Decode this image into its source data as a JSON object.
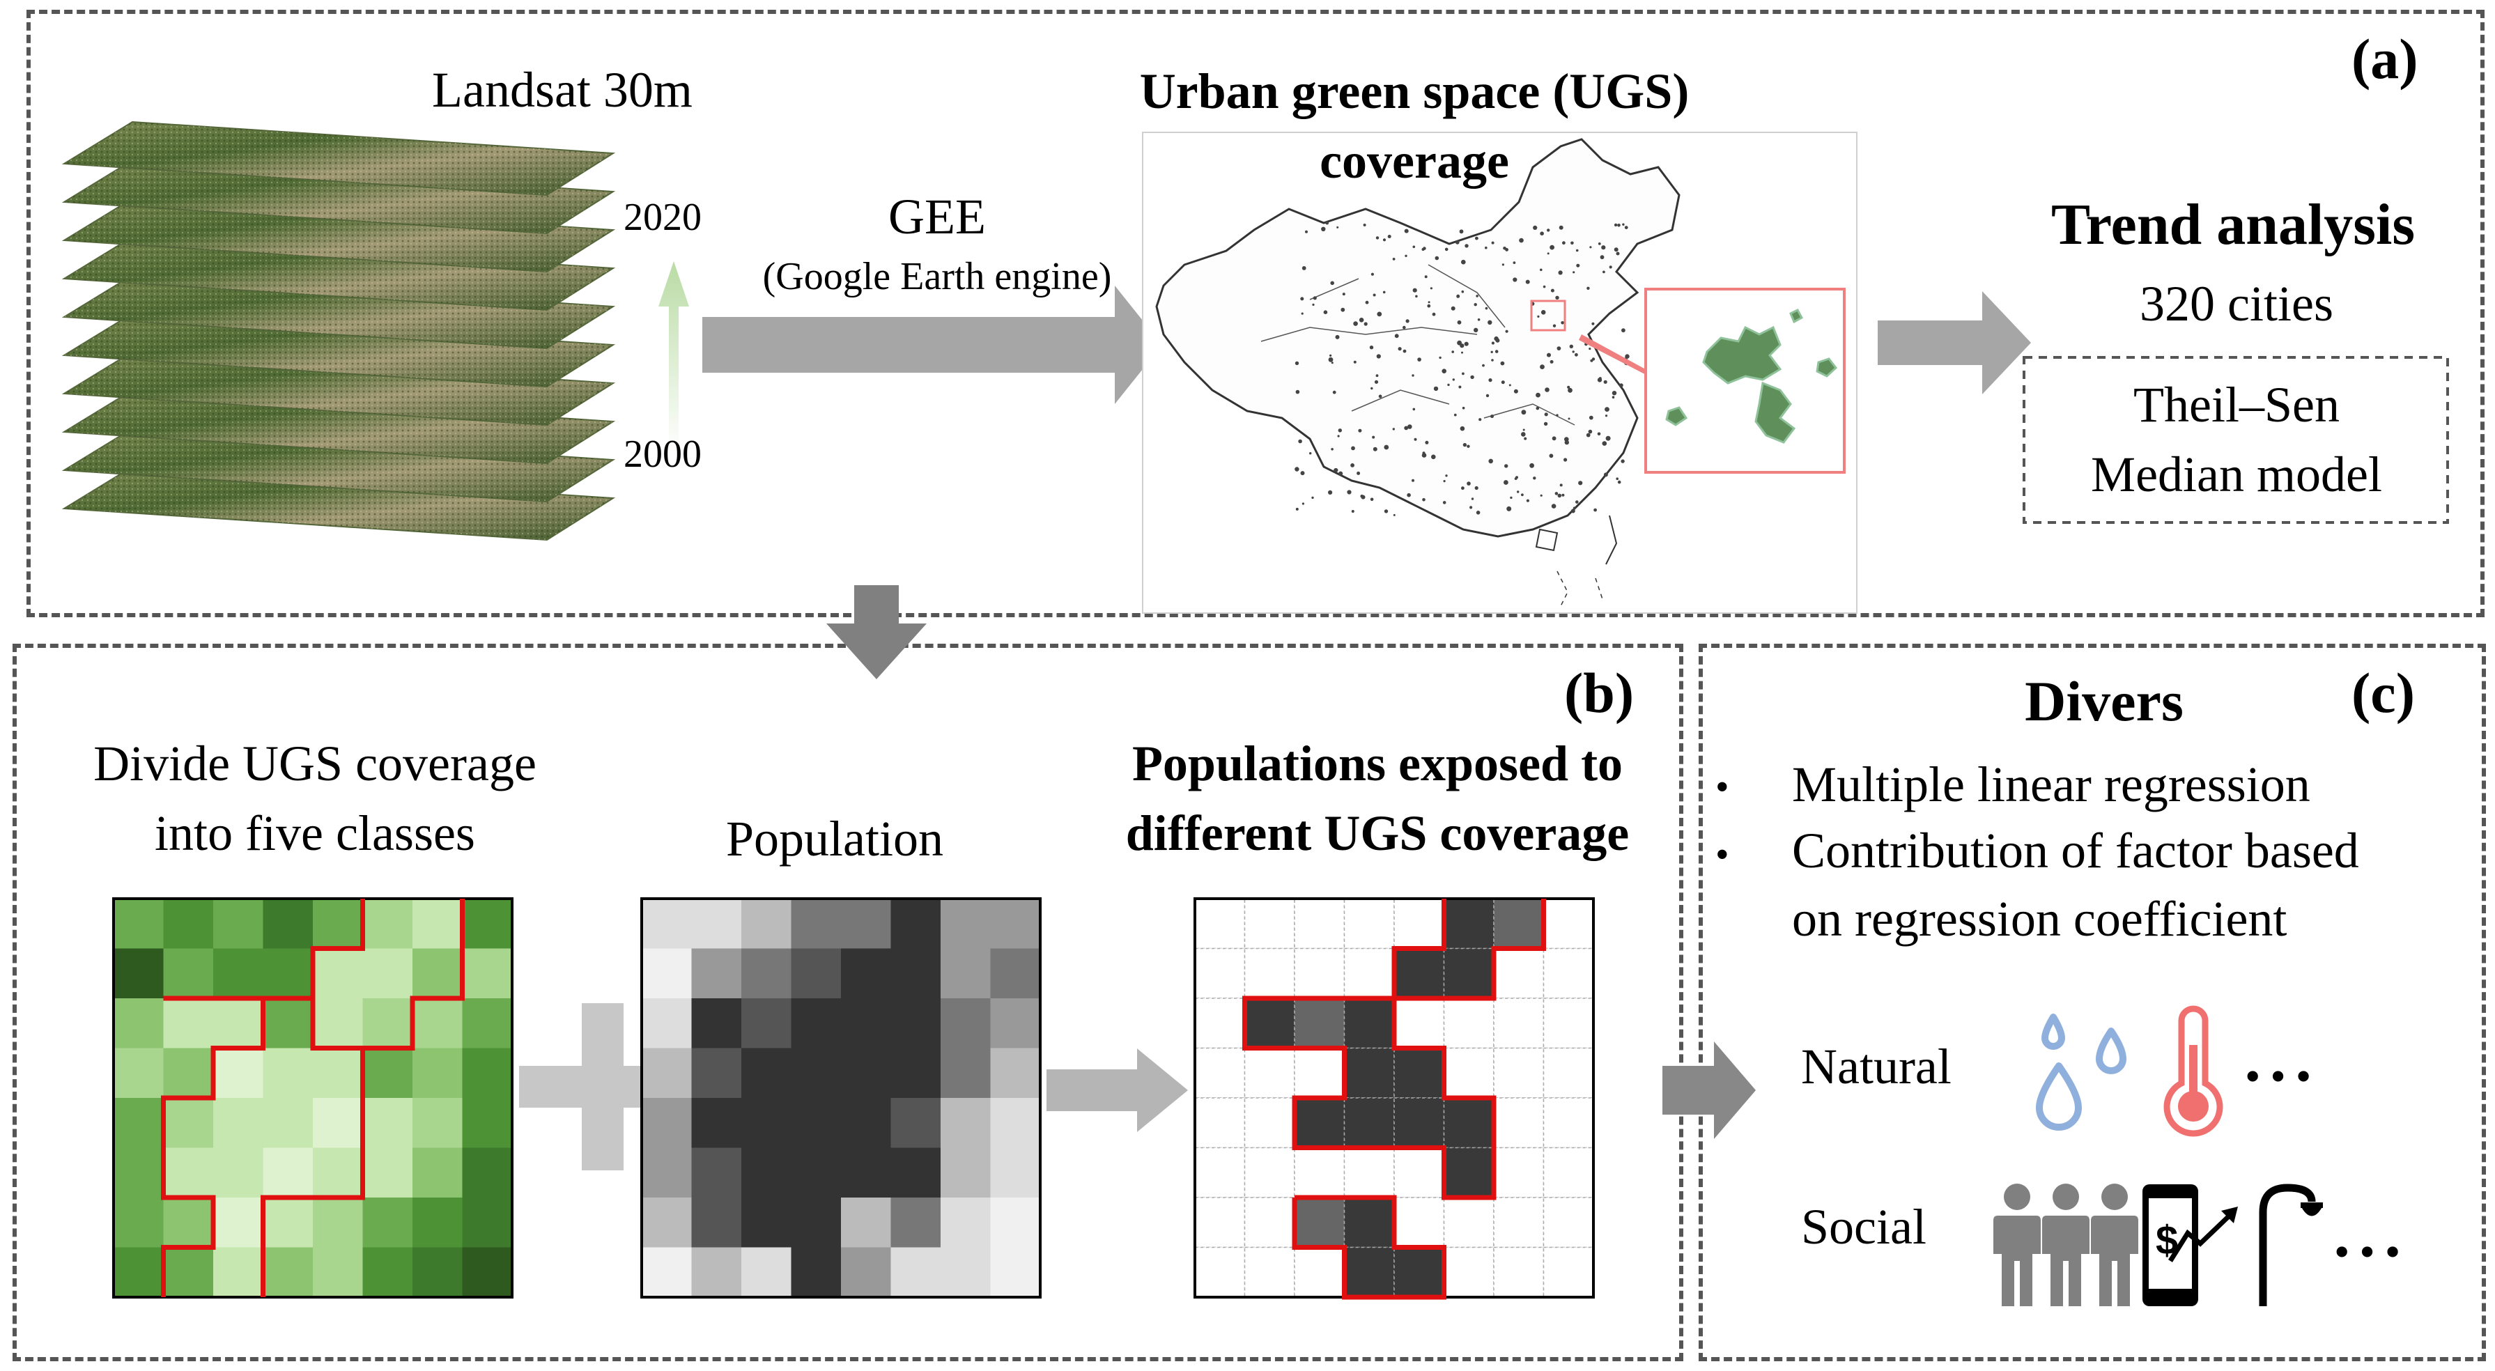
{
  "panel_a": {
    "label": "(a)",
    "landsat_label": "Landsat 30m",
    "year_top": "2020",
    "year_bottom": "2000",
    "gee_label": "GEE",
    "gee_sub": "(Google Earth engine)",
    "ugs_title_line1": "Urban green space (UGS)",
    "ugs_title_line2": "coverage",
    "trend_title": "Trend analysis",
    "cities": "320 cities",
    "model_line1": "Theil–Sen",
    "model_line2": "Median model"
  },
  "panel_b": {
    "label": "(b)",
    "divide_line1": "Divide UGS coverage",
    "divide_line2": "into five classes",
    "population_label": "Population",
    "exposed_line1": "Populations exposed to",
    "exposed_line2": "different UGS coverage"
  },
  "panel_c": {
    "label": "(c)",
    "title": "Divers",
    "bullet1": "Multiple linear regression",
    "bullet2_line1": "Contribution of factor based",
    "bullet2_line2": "on regression coefficient",
    "natural_label": "Natural",
    "social_label": "Social",
    "ellipsis": "•••"
  },
  "icons": [
    "landsat-stack-icon",
    "china-map-icon",
    "water-drops-icon",
    "thermometer-icon",
    "people-icon",
    "phone-finance-icon",
    "street-lamp-icon"
  ],
  "colors": {
    "border": "#555555",
    "arrow": "#999999",
    "red": "#e01010",
    "green_light": "#c6e7b0",
    "green_dark": "#3d7a2b",
    "drop": "#8fb0dd",
    "thermo": "#f07070",
    "map_red": "#f08080"
  }
}
